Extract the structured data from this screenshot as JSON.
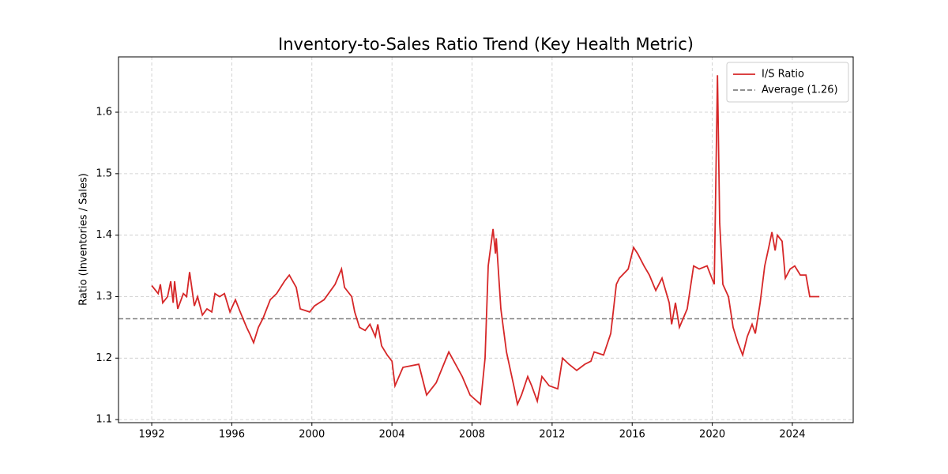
{
  "chart_data": {
    "type": "line",
    "title": "Inventory-to-Sales Ratio Trend (Key Health Metric)",
    "y_label": "Ratio (Inventories / Sales)",
    "x": [
      1992.0,
      1992.32,
      1992.43,
      1992.55,
      1992.79,
      1992.95,
      1993.07,
      1993.14,
      1993.3,
      1993.58,
      1993.74,
      1993.89,
      1994.13,
      1994.29,
      1994.53,
      1994.76,
      1995.0,
      1995.16,
      1995.39,
      1995.63,
      1995.91,
      1996.18,
      1996.42,
      1996.74,
      1996.89,
      1997.09,
      1997.33,
      1997.56,
      1997.92,
      1998.24,
      1998.63,
      1998.87,
      1999.22,
      1999.42,
      1999.89,
      2000.13,
      2000.61,
      2001.16,
      2001.48,
      2001.63,
      2001.99,
      2002.14,
      2002.38,
      2002.66,
      2002.9,
      2003.17,
      2003.29,
      2003.48,
      2003.76,
      2004.0,
      2004.15,
      2004.55,
      2005.34,
      2005.73,
      2006.21,
      2006.84,
      2007.51,
      2007.9,
      2008.42,
      2008.65,
      2008.81,
      2009.05,
      2009.17,
      2009.21,
      2009.44,
      2009.72,
      2010.12,
      2010.27,
      2010.47,
      2010.78,
      2010.98,
      2011.26,
      2011.49,
      2011.85,
      2012.28,
      2012.52,
      2012.84,
      2013.23,
      2013.63,
      2013.94,
      2014.1,
      2014.57,
      2014.93,
      2015.21,
      2015.36,
      2015.8,
      2016.07,
      2016.27,
      2016.59,
      2016.86,
      2017.18,
      2017.49,
      2017.85,
      2017.97,
      2018.16,
      2018.36,
      2018.75,
      2019.07,
      2019.35,
      2019.74,
      2020.1,
      2020.26,
      2020.37,
      2020.53,
      2020.81,
      2021.04,
      2021.28,
      2021.52,
      2021.75,
      2021.99,
      2022.15,
      2022.39,
      2022.62,
      2022.82,
      2022.98,
      2023.14,
      2023.25,
      2023.49,
      2023.65,
      2023.89,
      2024.12,
      2024.4,
      2024.68,
      2024.87,
      2025.35
    ],
    "series": [
      {
        "name": "I/S Ratio",
        "color": "#d62728",
        "values": [
          1.318,
          1.305,
          1.32,
          1.29,
          1.3,
          1.325,
          1.29,
          1.325,
          1.28,
          1.305,
          1.3,
          1.34,
          1.285,
          1.3,
          1.27,
          1.28,
          1.275,
          1.305,
          1.3,
          1.305,
          1.275,
          1.295,
          1.275,
          1.25,
          1.24,
          1.225,
          1.25,
          1.265,
          1.295,
          1.305,
          1.325,
          1.335,
          1.315,
          1.28,
          1.275,
          1.285,
          1.295,
          1.32,
          1.345,
          1.315,
          1.3,
          1.275,
          1.25,
          1.245,
          1.255,
          1.235,
          1.255,
          1.22,
          1.205,
          1.195,
          1.155,
          1.185,
          1.19,
          1.14,
          1.16,
          1.21,
          1.17,
          1.14,
          1.125,
          1.2,
          1.35,
          1.41,
          1.37,
          1.395,
          1.28,
          1.21,
          1.15,
          1.125,
          1.14,
          1.17,
          1.155,
          1.13,
          1.17,
          1.155,
          1.15,
          1.2,
          1.19,
          1.18,
          1.19,
          1.195,
          1.21,
          1.205,
          1.24,
          1.32,
          1.33,
          1.345,
          1.38,
          1.37,
          1.35,
          1.335,
          1.31,
          1.33,
          1.29,
          1.255,
          1.29,
          1.25,
          1.28,
          1.35,
          1.345,
          1.35,
          1.32,
          1.66,
          1.42,
          1.32,
          1.3,
          1.25,
          1.225,
          1.205,
          1.235,
          1.255,
          1.24,
          1.29,
          1.35,
          1.38,
          1.405,
          1.375,
          1.4,
          1.39,
          1.33,
          1.345,
          1.35,
          1.335,
          1.335,
          1.3,
          1.3
        ]
      }
    ],
    "reference_line": {
      "name": "Average (1.26)",
      "value": 1.264,
      "color": "#808080"
    },
    "xlim": [
      1990.34,
      2027.04
    ],
    "xticks": [
      1992,
      1996,
      2000,
      2004,
      2008,
      2012,
      2016,
      2020,
      2024
    ],
    "ylim": [
      1.095,
      1.69
    ],
    "yticks": [
      1.1,
      1.2,
      1.3,
      1.4,
      1.5,
      1.6
    ],
    "grid": true,
    "legend": "upper right"
  }
}
